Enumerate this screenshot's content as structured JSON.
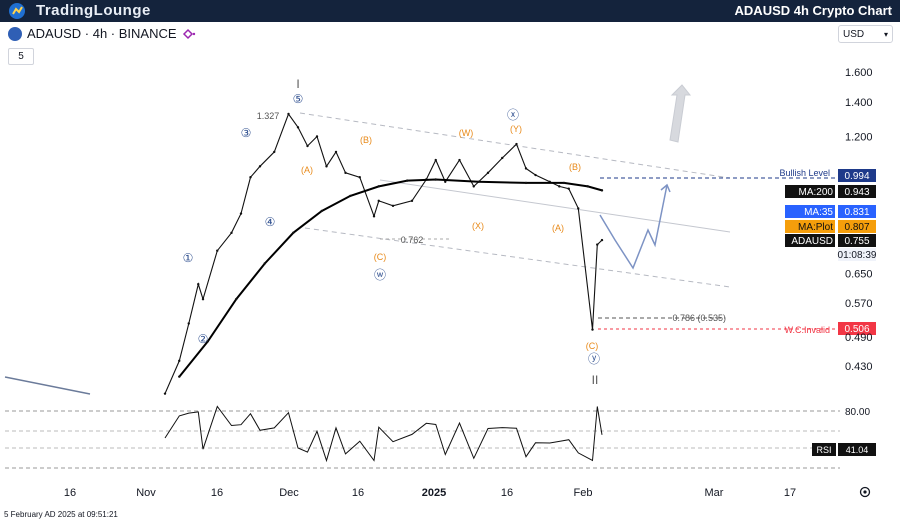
{
  "brand": {
    "logo_text": "TradingLounge",
    "title": "ADAUSD 4h Crypto Chart"
  },
  "toolbar": {
    "symbol": "ADAUSD · 4h · BINANCE",
    "interval_button": "5",
    "currency": "USD"
  },
  "footer": {
    "timestamp": "5 February AD 2025 at 09:51:21"
  },
  "icons": {
    "symbol": "cardano-icon",
    "indicator": "indicator-icon",
    "dropdown": "chevron-down-icon",
    "settings": "gear-icon",
    "logo": "tradinglounge-logo-icon"
  },
  "colors": {
    "header_bg": "#14233c",
    "ma200": "#000000",
    "ma35": "#2962ff",
    "maplot": "#f59e0b",
    "bullish": "#1e3a8a",
    "invalid": "#f23645",
    "wave_label": "#2f4f8f",
    "sub_wave": "#e88a1a"
  },
  "chart_data": {
    "type": "line",
    "title": "ADAUSD 4h Crypto Chart",
    "x_ticks": [
      "16",
      "Nov",
      "16",
      "Dec",
      "16",
      "2025",
      "16",
      "Feb",
      "Mar",
      "17"
    ],
    "y_ticks": [
      "1.600",
      "1.400",
      "1.200",
      "0.650",
      "0.570",
      "0.490",
      "0.430"
    ],
    "series": [
      {
        "name": "ADAUSD",
        "x": [
          "Nov 5",
          "Nov 8",
          "Nov 10",
          "Nov 12",
          "Nov 13",
          "Nov 16",
          "Nov 19",
          "Nov 21",
          "Nov 23",
          "Nov 25",
          "Nov 28",
          "Dec 1",
          "Dec 3",
          "Dec 5",
          "Dec 7",
          "Dec 9",
          "Dec 11",
          "Dec 13",
          "Dec 16",
          "Dec 19",
          "Dec 20",
          "Dec 23",
          "Dec 27",
          "Dec 30",
          "Jan 1",
          "Jan 3",
          "Jan 6",
          "Jan 9",
          "Jan 12",
          "Jan 15",
          "Jan 18",
          "Jan 20",
          "Jan 22",
          "Jan 25",
          "Jan 27",
          "Jan 29",
          "Jan 31",
          "Feb 3",
          "Feb 4",
          "Feb 5"
        ],
        "values": [
          0.38,
          0.44,
          0.52,
          0.62,
          0.58,
          0.72,
          0.78,
          0.85,
          1.0,
          1.05,
          1.12,
          1.327,
          1.25,
          1.15,
          1.2,
          1.05,
          1.12,
          1.02,
          1.0,
          0.84,
          0.9,
          0.88,
          0.9,
          0.99,
          1.08,
          0.98,
          1.08,
          0.96,
          1.02,
          1.09,
          1.16,
          1.04,
          1.01,
          0.98,
          0.96,
          0.95,
          0.87,
          0.506,
          0.74,
          0.755
        ]
      },
      {
        "name": "MA:200",
        "x": [
          "Nov 8",
          "Nov 14",
          "Nov 20",
          "Nov 26",
          "Dec 2",
          "Dec 8",
          "Dec 14",
          "Dec 20",
          "Dec 26",
          "Jan 1",
          "Jan 10",
          "Jan 20",
          "Jan 28",
          "Feb 2",
          "Feb 5"
        ],
        "values": [
          0.41,
          0.48,
          0.58,
          0.68,
          0.78,
          0.86,
          0.92,
          0.96,
          0.985,
          0.99,
          0.98,
          0.975,
          0.975,
          0.96,
          0.943
        ]
      }
    ],
    "levels": [
      {
        "label": "Bullish Level",
        "value": 0.994
      },
      {
        "label": "MA:200",
        "value": 0.943
      },
      {
        "label": "MA:35",
        "value": 0.831
      },
      {
        "label": "MA:Plot",
        "value": 0.807
      },
      {
        "label": "ADAUSD",
        "value": 0.755,
        "countdown": "01:08:39"
      },
      {
        "label": "W.C.Invalid",
        "value": 0.506
      }
    ],
    "annotations": {
      "waves_main": [
        "①",
        "②",
        "③",
        "④",
        "⑤",
        "ⓦ",
        "ⓧ",
        "ⓨ"
      ],
      "waves_sub": [
        "(A)",
        "(B)",
        "(C)",
        "(W)",
        "(X)",
        "(Y)",
        "(A)",
        "(B)",
        "(C)"
      ],
      "price_notes": [
        "1.327",
        "0.762",
        "0.786 (0.535)"
      ],
      "roman": [
        "I",
        "II"
      ]
    },
    "rsi": {
      "name": "RSI",
      "value": 41.04,
      "upper_tick": "80.00"
    }
  }
}
